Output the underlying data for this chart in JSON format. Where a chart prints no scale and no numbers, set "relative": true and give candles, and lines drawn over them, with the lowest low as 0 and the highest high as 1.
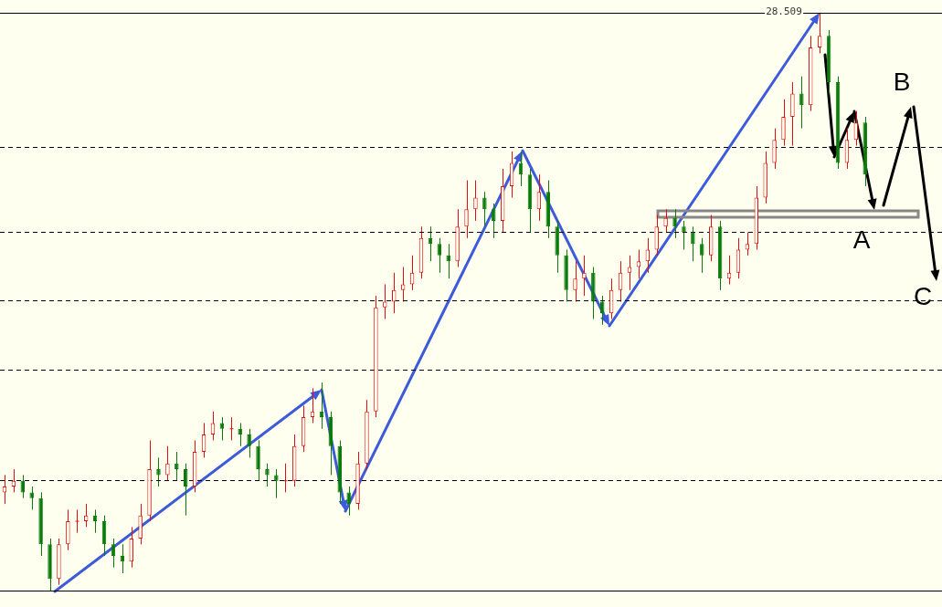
{
  "chart_data": {
    "type": "candlestick",
    "relative": true,
    "tick_labels": false,
    "categories": [
      null,
      null,
      null,
      null,
      null,
      null,
      null,
      null,
      null,
      null,
      null,
      null,
      null,
      null,
      null,
      null,
      null,
      null,
      null,
      null,
      null,
      null,
      null,
      null,
      null,
      null,
      null,
      null,
      null,
      null,
      null,
      null,
      null,
      null,
      null,
      null,
      null,
      null,
      null,
      null,
      null,
      null,
      null,
      null,
      null,
      null,
      null,
      null,
      null,
      null,
      null,
      null,
      null,
      null,
      null,
      null,
      null,
      null,
      null,
      null,
      null,
      null,
      null,
      null,
      null,
      null,
      null,
      null,
      null,
      null,
      null,
      null,
      null,
      null,
      null,
      null,
      null,
      null,
      null,
      null,
      null,
      null,
      null,
      null,
      null,
      null,
      null,
      null,
      null,
      null,
      null,
      null,
      null,
      null,
      null,
      null,
      null,
      null,
      null,
      null,
      null,
      null,
      null,
      null
    ],
    "ohlc": [
      [
        0.17,
        0.2,
        0.15,
        0.18
      ],
      [
        0.18,
        0.21,
        0.17,
        0.19
      ],
      [
        0.19,
        0.2,
        0.16,
        0.17
      ],
      [
        0.17,
        0.18,
        0.14,
        0.16
      ],
      [
        0.16,
        0.17,
        0.06,
        0.08
      ],
      [
        0.08,
        0.09,
        0.0,
        0.02
      ],
      [
        0.02,
        0.09,
        0.01,
        0.08
      ],
      [
        0.08,
        0.14,
        0.07,
        0.12
      ],
      [
        0.12,
        0.14,
        0.1,
        0.12
      ],
      [
        0.12,
        0.15,
        0.11,
        0.13
      ],
      [
        0.13,
        0.14,
        0.1,
        0.12
      ],
      [
        0.12,
        0.13,
        0.06,
        0.08
      ],
      [
        0.08,
        0.09,
        0.04,
        0.06
      ],
      [
        0.06,
        0.08,
        0.03,
        0.05
      ],
      [
        0.05,
        0.11,
        0.04,
        0.09
      ],
      [
        0.09,
        0.15,
        0.08,
        0.13
      ],
      [
        0.13,
        0.26,
        0.12,
        0.21
      ],
      [
        0.21,
        0.23,
        0.18,
        0.2
      ],
      [
        0.2,
        0.25,
        0.19,
        0.22
      ],
      [
        0.22,
        0.24,
        0.19,
        0.21
      ],
      [
        0.21,
        0.22,
        0.13,
        0.18
      ],
      [
        0.18,
        0.26,
        0.17,
        0.24
      ],
      [
        0.24,
        0.29,
        0.23,
        0.27
      ],
      [
        0.27,
        0.31,
        0.26,
        0.29
      ],
      [
        0.29,
        0.3,
        0.26,
        0.28
      ],
      [
        0.28,
        0.3,
        0.26,
        0.28
      ],
      [
        0.28,
        0.29,
        0.25,
        0.27
      ],
      [
        0.27,
        0.28,
        0.23,
        0.25
      ],
      [
        0.25,
        0.26,
        0.19,
        0.21
      ],
      [
        0.21,
        0.22,
        0.18,
        0.2
      ],
      [
        0.2,
        0.21,
        0.16,
        0.19
      ],
      [
        0.19,
        0.22,
        0.17,
        0.19
      ],
      [
        0.19,
        0.27,
        0.18,
        0.25
      ],
      [
        0.25,
        0.32,
        0.24,
        0.3
      ],
      [
        0.3,
        0.35,
        0.29,
        0.31
      ],
      [
        0.31,
        0.36,
        0.28,
        0.3
      ],
      [
        0.3,
        0.31,
        0.2,
        0.25
      ],
      [
        0.25,
        0.26,
        0.15,
        0.17
      ],
      [
        0.17,
        0.18,
        0.13,
        0.15
      ],
      [
        0.15,
        0.24,
        0.14,
        0.22
      ],
      [
        0.22,
        0.33,
        0.21,
        0.31
      ],
      [
        0.31,
        0.51,
        0.3,
        0.49
      ],
      [
        0.49,
        0.53,
        0.47,
        0.5
      ],
      [
        0.5,
        0.55,
        0.48,
        0.52
      ],
      [
        0.52,
        0.56,
        0.5,
        0.53
      ],
      [
        0.53,
        0.58,
        0.52,
        0.55
      ],
      [
        0.55,
        0.63,
        0.54,
        0.61
      ],
      [
        0.61,
        0.63,
        0.57,
        0.6
      ],
      [
        0.6,
        0.61,
        0.55,
        0.58
      ],
      [
        0.58,
        0.6,
        0.54,
        0.57
      ],
      [
        0.57,
        0.66,
        0.56,
        0.63
      ],
      [
        0.63,
        0.71,
        0.61,
        0.66
      ],
      [
        0.66,
        0.71,
        0.64,
        0.68
      ],
      [
        0.68,
        0.69,
        0.63,
        0.66
      ],
      [
        0.66,
        0.67,
        0.61,
        0.64
      ],
      [
        0.64,
        0.73,
        0.62,
        0.7
      ],
      [
        0.7,
        0.76,
        0.68,
        0.74
      ],
      [
        0.74,
        0.76,
        0.7,
        0.72
      ],
      [
        0.72,
        0.73,
        0.62,
        0.66
      ],
      [
        0.66,
        0.72,
        0.64,
        0.69
      ],
      [
        0.69,
        0.71,
        0.61,
        0.63
      ],
      [
        0.63,
        0.64,
        0.55,
        0.58
      ],
      [
        0.58,
        0.59,
        0.5,
        0.52
      ],
      [
        0.52,
        0.57,
        0.5,
        0.54
      ],
      [
        0.54,
        0.58,
        0.51,
        0.55
      ],
      [
        0.55,
        0.56,
        0.47,
        0.5
      ],
      [
        0.5,
        0.51,
        0.46,
        0.48
      ],
      [
        0.48,
        0.54,
        0.47,
        0.52
      ],
      [
        0.52,
        0.57,
        0.5,
        0.55
      ],
      [
        0.55,
        0.58,
        0.52,
        0.56
      ],
      [
        0.56,
        0.59,
        0.54,
        0.57
      ],
      [
        0.57,
        0.61,
        0.55,
        0.59
      ],
      [
        0.59,
        0.65,
        0.58,
        0.63
      ],
      [
        0.63,
        0.66,
        0.62,
        0.645
      ],
      [
        0.645,
        0.66,
        0.61,
        0.63
      ],
      [
        0.63,
        0.64,
        0.59,
        0.62
      ],
      [
        0.62,
        0.63,
        0.57,
        0.6
      ],
      [
        0.6,
        0.61,
        0.55,
        0.58
      ],
      [
        0.58,
        0.65,
        0.57,
        0.63
      ],
      [
        0.63,
        0.64,
        0.52,
        0.54
      ],
      [
        0.54,
        0.58,
        0.53,
        0.55
      ],
      [
        0.55,
        0.61,
        0.54,
        0.59
      ],
      [
        0.59,
        0.62,
        0.58,
        0.6
      ],
      [
        0.6,
        0.7,
        0.59,
        0.68
      ],
      [
        0.68,
        0.76,
        0.67,
        0.74
      ],
      [
        0.74,
        0.8,
        0.73,
        0.78
      ],
      [
        0.78,
        0.85,
        0.77,
        0.82
      ],
      [
        0.82,
        0.88,
        0.77,
        0.86
      ],
      [
        0.86,
        0.89,
        0.8,
        0.84
      ],
      [
        0.84,
        0.96,
        0.83,
        0.94
      ],
      [
        0.94,
        1.0,
        0.93,
        0.96
      ],
      [
        0.96,
        0.97,
        0.86,
        0.88
      ],
      [
        0.88,
        0.89,
        0.73,
        0.74
      ],
      [
        0.74,
        0.8,
        0.73,
        0.78
      ],
      [
        0.78,
        0.83,
        0.77,
        0.81
      ],
      [
        0.81,
        0.82,
        0.7,
        0.72
      ],
      null,
      null,
      null,
      null,
      null,
      null,
      null,
      null
    ],
    "ref_lines": [
      {
        "axis": "y",
        "value": 1,
        "color": "#000000",
        "line_style": "solid"
      },
      {
        "axis": "y",
        "value": 0.767,
        "color": "#000000",
        "line_style": "dashed"
      },
      {
        "axis": "y",
        "value": 0.621,
        "color": "#000000",
        "line_style": "dashed"
      },
      {
        "axis": "y",
        "value": 0.503,
        "color": "#000000",
        "line_style": "dashed"
      },
      {
        "axis": "y",
        "value": 0.382,
        "color": "#000000",
        "line_style": "dashed"
      },
      {
        "axis": "y",
        "value": 0.191,
        "color": "#000000",
        "line_style": "dashed"
      }
    ],
    "annotations": [
      "28.509",
      "A",
      "B",
      "C"
    ]
  }
}
